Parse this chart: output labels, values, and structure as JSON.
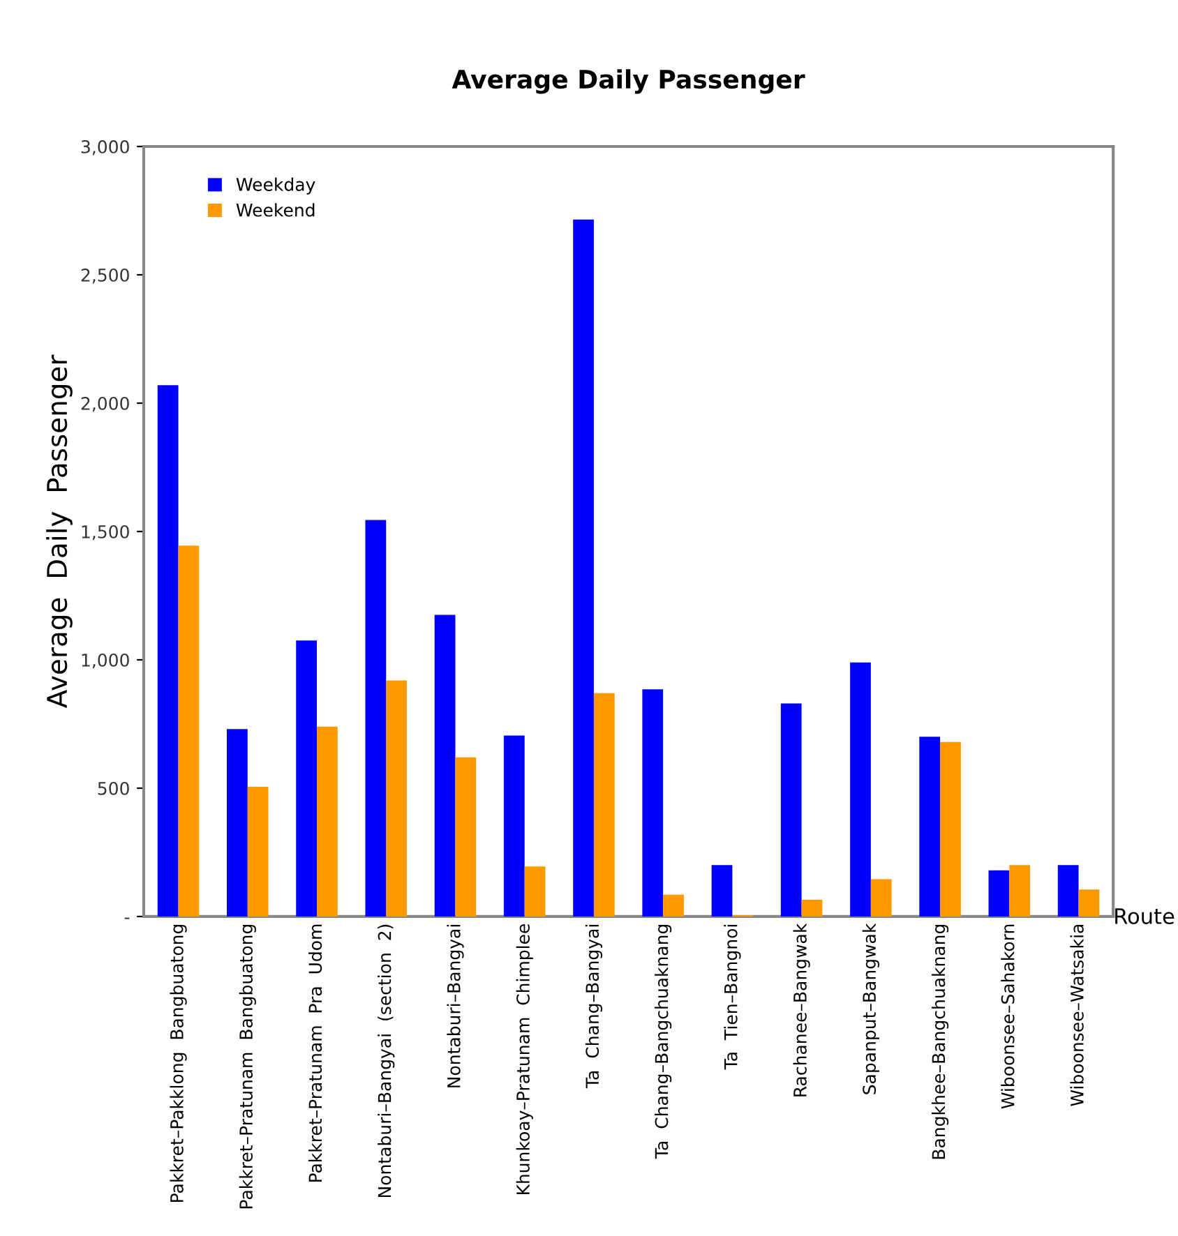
{
  "chart_data": {
    "type": "bar",
    "title": "Average Daily Passenger",
    "xlabel": "Route",
    "ylabel": "Average  Daily  Passenger",
    "categories": [
      "Pakkret–Pakklong  Bangbuatong",
      "Pakkret–Pratunam  Bangbuatong",
      "Pakkret–Pratunam  Pra  Udom",
      "Nontaburi–Bangyai  (section  2)",
      "Nontaburi–Bangyai",
      "Khunkoay–Pratunam  Chimplee",
      "Ta  Chang–Bangyai",
      "Ta  Chang–Bangchuaknang",
      "Ta  Tien–Bangnoi",
      "Rachanee–Bangwak",
      "Sapanput–Bangwak",
      "Bangkhee–Bangchuaknang",
      "Wiboonsee–Sahakorn",
      "Wiboonsee–Watsakia"
    ],
    "series": [
      {
        "name": "Weekday",
        "color": "#0000ff",
        "values": [
          2070,
          730,
          1075,
          1545,
          1175,
          705,
          2715,
          885,
          200,
          830,
          990,
          700,
          180,
          200
        ]
      },
      {
        "name": "Weekend",
        "color": "#ff9900",
        "values": [
          1445,
          505,
          740,
          920,
          620,
          195,
          870,
          85,
          5,
          65,
          145,
          680,
          200,
          105
        ]
      }
    ],
    "ylim": [
      0,
      3000
    ],
    "yticks": [
      {
        "value": 0,
        "label": "-"
      },
      {
        "value": 500,
        "label": "500"
      },
      {
        "value": 1000,
        "label": "1,000"
      },
      {
        "value": 1500,
        "label": "1,500"
      },
      {
        "value": 2000,
        "label": "2,000"
      },
      {
        "value": 2500,
        "label": "2,500"
      },
      {
        "value": 3000,
        "label": "3,000"
      }
    ],
    "legend": "top left",
    "grid": false
  }
}
